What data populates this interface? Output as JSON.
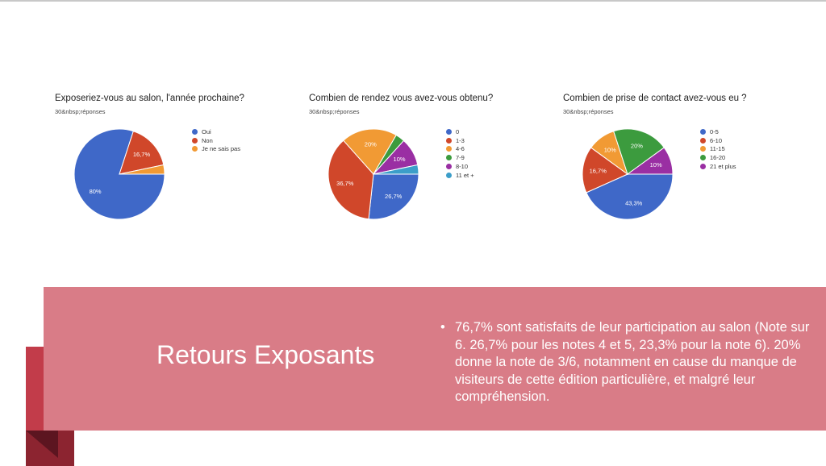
{
  "chart_data": [
    {
      "type": "pie",
      "title": "Exposeriez-vous au salon, l'année prochaine?",
      "subtitle": "30&nbsp;réponses",
      "legend_position": "right",
      "slices": [
        {
          "label": "Oui",
          "value": 80,
          "display": "80%",
          "color": "#3f68c8"
        },
        {
          "label": "Non",
          "value": 16.7,
          "display": "16,7%",
          "color": "#d0472a"
        },
        {
          "label": "Je ne sais pas",
          "value": 3.3,
          "display": "",
          "color": "#f19a34"
        }
      ]
    },
    {
      "type": "pie",
      "title": "Combien de rendez vous avez-vous obtenu?",
      "subtitle": "30&nbsp;réponses",
      "legend_position": "right",
      "slices": [
        {
          "label": "0",
          "value": 26.7,
          "display": "26,7%",
          "color": "#3f68c8"
        },
        {
          "label": "1-3",
          "value": 36.7,
          "display": "36,7%",
          "color": "#d0472a"
        },
        {
          "label": "4-6",
          "value": 20,
          "display": "20%",
          "color": "#f19a34"
        },
        {
          "label": "7-9",
          "value": 3.3,
          "display": "",
          "color": "#3c9b3e"
        },
        {
          "label": "8-10",
          "value": 10,
          "display": "10%",
          "color": "#9a2fa3"
        },
        {
          "label": "11 et +",
          "value": 3.3,
          "display": "",
          "color": "#3c9ec9"
        }
      ]
    },
    {
      "type": "pie",
      "title": "Combien de prise de contact avez-vous eu ?",
      "subtitle": "30&nbsp;réponses",
      "legend_position": "right",
      "slices": [
        {
          "label": "0-5",
          "value": 43.3,
          "display": "43,3%",
          "color": "#3f68c8"
        },
        {
          "label": "6-10",
          "value": 16.7,
          "display": "16,7%",
          "color": "#d0472a"
        },
        {
          "label": "11-15",
          "value": 10,
          "display": "10%",
          "color": "#f19a34"
        },
        {
          "label": "16-20",
          "value": 20,
          "display": "20%",
          "color": "#3c9b3e"
        },
        {
          "label": "21 et plus",
          "value": 10,
          "display": "10%",
          "color": "#9a2fa3"
        }
      ]
    }
  ],
  "banner": {
    "title": "Retours Exposants",
    "bullet_symbol": "•",
    "bullet_text": "76,7% sont satisfaits de leur participation au salon (Note sur 6. 26,7% pour les notes 4 et 5, 23,3% pour la note 6). 20% donne la note de 3/6, notamment en cause du manque de visiteurs de cette édition particulière, et malgré leur compréhension."
  }
}
